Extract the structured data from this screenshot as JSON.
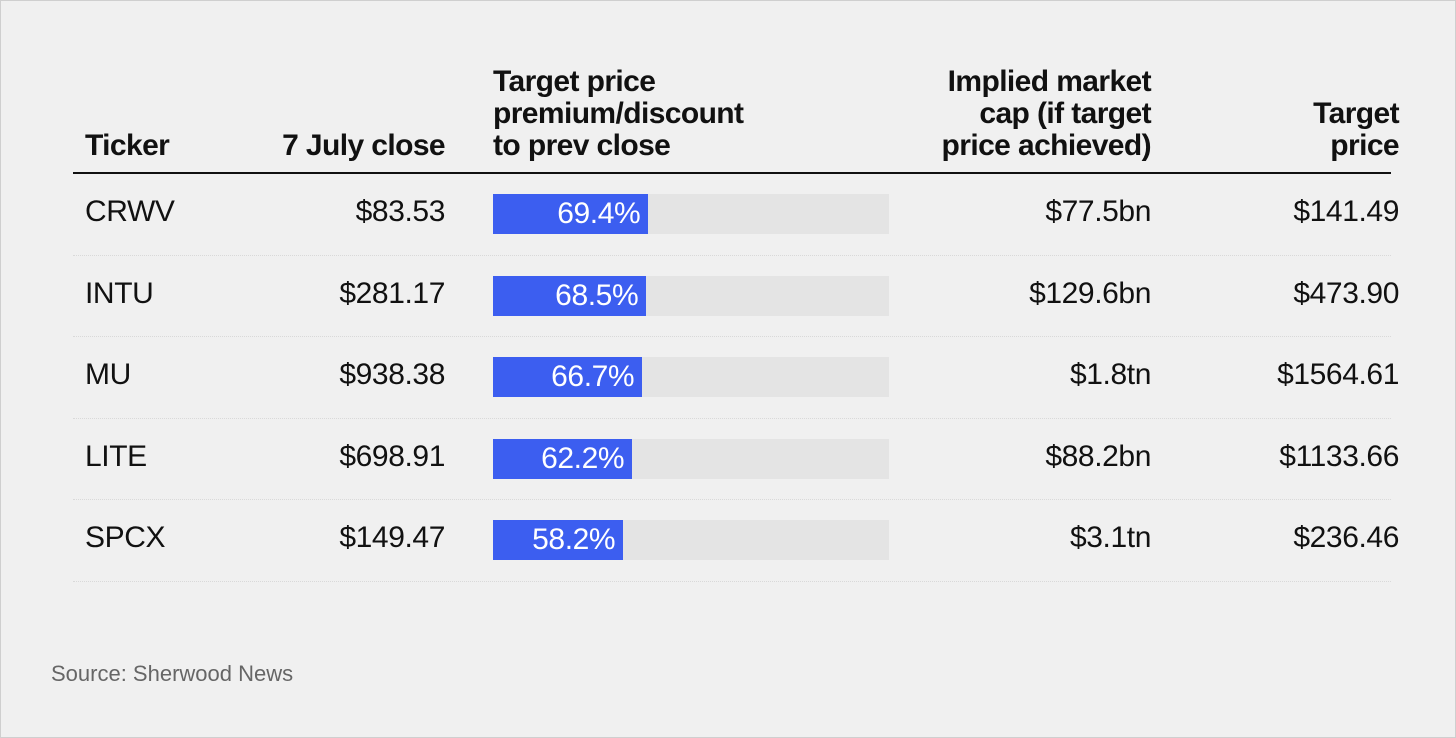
{
  "colors": {
    "background": "#f0f0f0",
    "bar": "#3c5ef0",
    "bar_track": "#e4e4e4",
    "text": "#111111",
    "source_text": "#666666"
  },
  "chart_data": {
    "type": "table",
    "columns": [
      "Ticker",
      "7 July close",
      "Target price\npremium/discount\nto prev close",
      "Implied market\ncap (if target\nprice achieved)",
      "Target\nprice"
    ],
    "rows": [
      {
        "ticker": "CRWV",
        "close": "$83.53",
        "premium": 69.4,
        "premium_label": "69.4%",
        "market_cap": "$77.5bn",
        "target": "$141.49"
      },
      {
        "ticker": "INTU",
        "close": "$281.17",
        "premium": 68.5,
        "premium_label": "68.5%",
        "market_cap": "$129.6bn",
        "target": "$473.90"
      },
      {
        "ticker": "MU",
        "close": "$938.38",
        "premium": 66.7,
        "premium_label": "66.7%",
        "market_cap": "$1.8tn",
        "target": "$1564.61"
      },
      {
        "ticker": "LITE",
        "close": "$698.91",
        "premium": 62.2,
        "premium_label": "62.2%",
        "market_cap": "$88.2bn",
        "target": "$1133.66"
      },
      {
        "ticker": "SPCX",
        "close": "$149.47",
        "premium": 58.2,
        "premium_label": "58.2%",
        "market_cap": "$3.1tn",
        "target": "$236.46"
      }
    ],
    "bar_scale_max": 177
  },
  "source": "Source: Sherwood News"
}
